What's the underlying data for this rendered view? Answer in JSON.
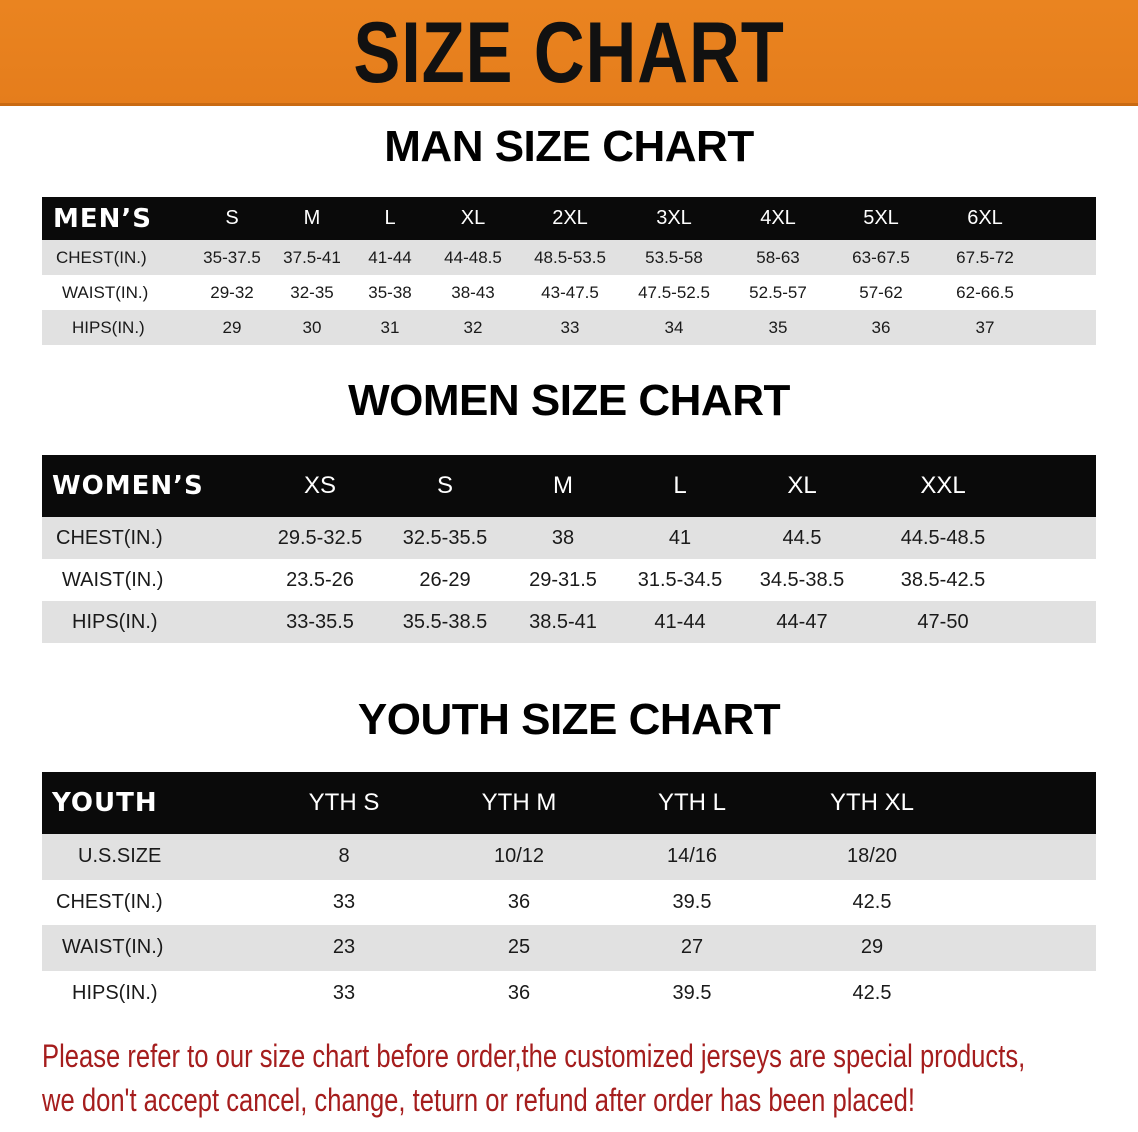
{
  "banner": {
    "title": "SIZE CHART",
    "color": "#e8821f"
  },
  "men": {
    "title": "MAN SIZE CHART",
    "header": [
      "MEN’S",
      "S",
      "M",
      "L",
      "XL",
      "2XL",
      "3XL",
      "4XL",
      "5XL",
      "6XL"
    ],
    "rows": [
      [
        "CHEST(IN.)",
        "35-37.5",
        "37.5-41",
        "41-44",
        "44-48.5",
        "48.5-53.5",
        "53.5-58",
        "58-63",
        "63-67.5",
        "67.5-72"
      ],
      [
        "WAIST(IN.)",
        "29-32",
        "32-35",
        "35-38",
        "38-43",
        "43-47.5",
        "47.5-52.5",
        "52.5-57",
        "57-62",
        "62-66.5"
      ],
      [
        "HIPS(IN.)",
        "29",
        "30",
        "31",
        "32",
        "33",
        "34",
        "35",
        "36",
        "37"
      ]
    ]
  },
  "women": {
    "title": "WOMEN SIZE CHART",
    "header": [
      "WOMEN’S",
      "XS",
      "S",
      "M",
      "L",
      "XL",
      "XXL"
    ],
    "rows": [
      [
        "CHEST(IN.)",
        "29.5-32.5",
        "32.5-35.5",
        "38",
        "41",
        "44.5",
        "44.5-48.5"
      ],
      [
        "WAIST(IN.)",
        "23.5-26",
        "26-29",
        "29-31.5",
        "31.5-34.5",
        "34.5-38.5",
        "38.5-42.5"
      ],
      [
        "HIPS(IN.)",
        "33-35.5",
        "35.5-38.5",
        "38.5-41",
        "41-44",
        "44-47",
        "47-50"
      ]
    ]
  },
  "youth": {
    "title": "YOUTH SIZE CHART",
    "header": [
      "YOUTH",
      "YTH S",
      "YTH M",
      "YTH L",
      "YTH XL"
    ],
    "rows": [
      [
        "U.S.SIZE",
        "8",
        "10/12",
        "14/16",
        "18/20"
      ],
      [
        "CHEST(IN.)",
        "33",
        "36",
        "39.5",
        "42.5"
      ],
      [
        "WAIST(IN.)",
        "23",
        "25",
        "27",
        "29"
      ],
      [
        "HIPS(IN.)",
        "33",
        "36",
        "39.5",
        "42.5"
      ]
    ]
  },
  "footer": {
    "line1": "Please refer to our size chart before order,the customized jerseys are special products,",
    "line2": "we don't accept cancel, change, teturn or refund after order has been placed!",
    "color": "#a51d1d"
  }
}
